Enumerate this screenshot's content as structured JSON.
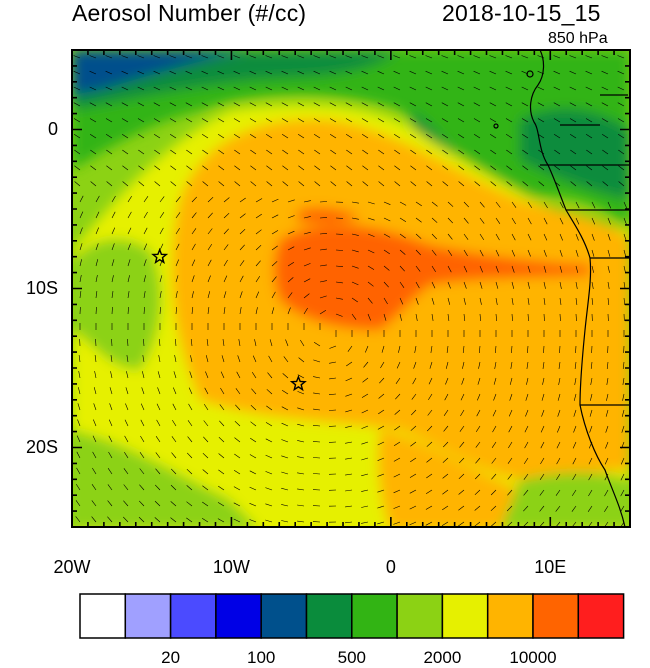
{
  "header": {
    "title": "Aerosol Number (#/cc)",
    "datetime": "2018-10-15_15",
    "level": "850 hPa"
  },
  "axes": {
    "x_ticks": [
      {
        "value": -20,
        "label": "20W"
      },
      {
        "value": -10,
        "label": "10W"
      },
      {
        "value": 0,
        "label": "0"
      },
      {
        "value": 10,
        "label": "10E"
      }
    ],
    "y_ticks": [
      {
        "value": 0,
        "label": "0"
      },
      {
        "value": -10,
        "label": "10S"
      },
      {
        "value": -20,
        "label": "20S"
      }
    ],
    "lon_range": [
      -20,
      15
    ],
    "lat_range": [
      -25,
      5
    ]
  },
  "markers": [
    {
      "type": "star",
      "lon": -14.5,
      "lat": -8
    },
    {
      "type": "star",
      "lon": -5.8,
      "lat": -16
    }
  ],
  "colorbar": {
    "colors": [
      "#ffffff",
      "#a0a0ff",
      "#4b4bff",
      "#0000e6",
      "#00508c",
      "#0a8c3c",
      "#32b414",
      "#8cd214",
      "#e6f000",
      "#ffb400",
      "#ff6400",
      "#ff1e1e"
    ],
    "labels": [
      {
        "after_box": 2,
        "text": "20"
      },
      {
        "after_box": 4,
        "text": "100"
      },
      {
        "after_box": 6,
        "text": "500"
      },
      {
        "after_box": 8,
        "text": "2000"
      },
      {
        "after_box": 10,
        "text": "10000"
      }
    ]
  }
}
